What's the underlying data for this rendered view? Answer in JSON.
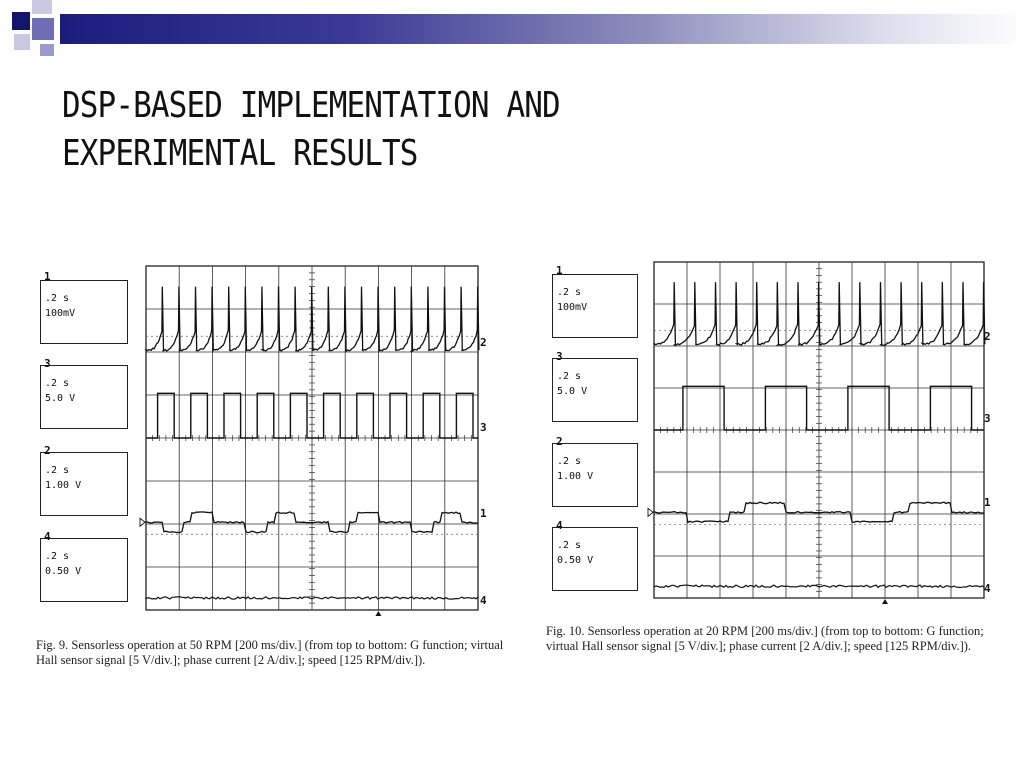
{
  "slide": {
    "title_lines": [
      "DSP-BASED IMPLEMENTATION AND",
      "EXPERIMENTAL RESULTS"
    ],
    "colors": {
      "bar_dark": "#1c1c7c",
      "bar_light": "#dcdcec",
      "square_dark": "#14146e",
      "square_mid": "#6e6eb4",
      "square_light": "#c8c8e2"
    }
  },
  "figures": [
    {
      "caption": "Fig. 9.   Sensorless operation at 50 RPM [200 ms/div.] (from top to bottom: G function; virtual Hall sensor signal [5 V/div.]; phase current [2 A/div.]; speed [125 RPM/div.]).",
      "channels": [
        {
          "num": "1",
          "time": ".2 s",
          "scale": "100mV"
        },
        {
          "num": "3",
          "time": ".2 s",
          "scale": "5.0 V"
        },
        {
          "num": "2",
          "time": ".2 s",
          "scale": "1.00 V"
        },
        {
          "num": "4",
          "time": ".2 s",
          "scale": "0.50 V"
        }
      ],
      "trace_labels": [
        "2",
        "3",
        "1",
        "4"
      ],
      "waveform": {
        "g_pulses": 20,
        "hall_cycles": 10,
        "current_cycles": 4
      }
    },
    {
      "caption": "Fig. 10.   Sensorless operation at 20 RPM [200 ms/div.] (from top to bottom: G function; virtual Hall sensor signal [5 V/div.]; phase current [2 A/div.]; speed [125 RPM/div.]).",
      "channels": [
        {
          "num": "1",
          "time": ".2 s",
          "scale": "100mV"
        },
        {
          "num": "3",
          "time": ".2 s",
          "scale": "5.0 V"
        },
        {
          "num": "2",
          "time": ".2 s",
          "scale": "1.00 V"
        },
        {
          "num": "4",
          "time": ".2 s",
          "scale": "0.50 V"
        }
      ],
      "trace_labels": [
        "2",
        "3",
        "1",
        "4"
      ],
      "waveform": {
        "g_pulses": 16,
        "hall_cycles": 4,
        "current_cycles": 2
      }
    }
  ]
}
